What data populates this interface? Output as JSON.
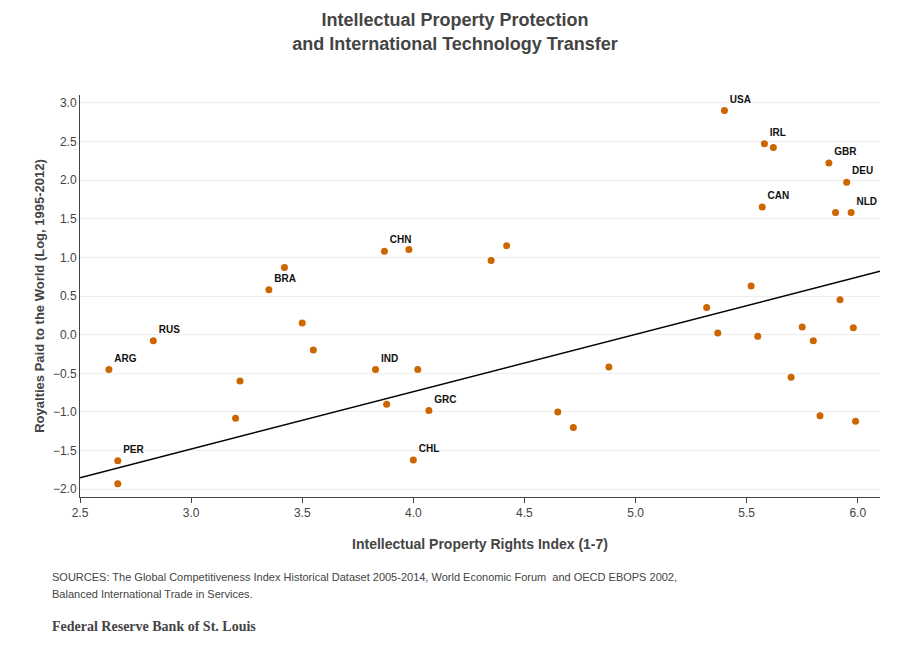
{
  "chart_data": {
    "type": "scatter",
    "title": "Intellectual Property Protection\nand International Technology Transfer",
    "x_label": "Intellectual Property Rights Index (1-7)",
    "y_label": "Royalties Paid to the World (Log, 1995-2012)",
    "xlim": [
      2.5,
      6.1
    ],
    "ylim": [
      -2.1,
      3.1
    ],
    "xticks": [
      2.5,
      {
        "value": 3,
        "label": "3.0"
      },
      3.5,
      {
        "value": 4,
        "label": "4.0"
      },
      4.5,
      {
        "value": 5,
        "label": "5.0"
      },
      5.5,
      {
        "value": 6,
        "label": "6.0"
      }
    ],
    "yticks": [
      {
        "value": -2,
        "label": "−2.0"
      },
      {
        "value": -1.5,
        "label": "−1.5"
      },
      {
        "value": -1,
        "label": "−1.0"
      },
      {
        "value": -0.5,
        "label": "−0.5"
      },
      {
        "value": 0,
        "label": "0.0"
      },
      0.5,
      {
        "value": 1,
        "label": "1.0"
      },
      1.5,
      {
        "value": 2,
        "label": "2.0"
      },
      2.5,
      {
        "value": 3,
        "label": "3.0"
      }
    ],
    "grid": "y",
    "series": [
      {
        "type": "scatter",
        "color": "#cc6600",
        "x": [
          2.63,
          2.67,
          2.67,
          2.83,
          3.2,
          3.22,
          3.35,
          3.42,
          3.5,
          3.55,
          3.83,
          3.87,
          3.88,
          3.98,
          4.0,
          4.02,
          4.07,
          4.35,
          4.42,
          4.65,
          4.72,
          4.88,
          5.32,
          5.37,
          5.4,
          5.52,
          5.55,
          5.57,
          5.58,
          5.62,
          5.7,
          5.75,
          5.8,
          5.83,
          5.87,
          5.9,
          5.92,
          5.95,
          5.97,
          5.99,
          5.98
        ],
        "values": [
          -0.45,
          -1.63,
          -1.93,
          -0.08,
          -1.08,
          -0.6,
          0.58,
          0.87,
          0.15,
          -0.2,
          -0.45,
          1.08,
          -0.9,
          1.1,
          -1.62,
          -0.45,
          -0.98,
          0.96,
          1.15,
          -1.0,
          -1.2,
          -0.42,
          0.35,
          0.02,
          2.9,
          0.63,
          -0.02,
          1.65,
          2.47,
          2.42,
          -0.55,
          0.1,
          -0.08,
          -1.05,
          2.22,
          1.58,
          0.45,
          1.97,
          1.58,
          -1.12,
          0.09
        ],
        "labels": [
          "ARG",
          "PER",
          null,
          "RUS",
          null,
          null,
          "BRA",
          null,
          null,
          null,
          "IND",
          "CHN",
          null,
          null,
          "CHL",
          null,
          "GRC",
          null,
          null,
          null,
          null,
          null,
          null,
          null,
          "USA",
          null,
          null,
          "CAN",
          "IRL",
          null,
          null,
          null,
          null,
          null,
          "GBR",
          null,
          null,
          "DEU",
          "NLD",
          null,
          null
        ]
      },
      {
        "type": "line",
        "color": "#000000",
        "x": [
          2.5,
          6.1
        ],
        "values": [
          -1.85,
          0.82
        ]
      }
    ],
    "annotations": [
      "SOURCES: The Global Competitiveness Index Historical Dataset 2005-2014, World Economic Forum  and OECD EBOPS 2002,",
      "Balanced International Trade in Services.",
      "Federal Reserve Bank of St. Louis"
    ]
  }
}
